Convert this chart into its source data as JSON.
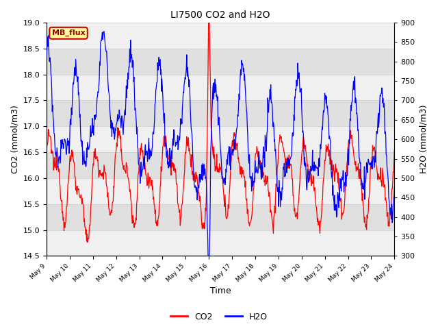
{
  "title": "LI7500 CO2 and H2O",
  "xlabel": "Time",
  "ylabel_left": "CO2 (mmol/m3)",
  "ylabel_right": "H2O (mmol/m3)",
  "ylim_left": [
    14.5,
    19.0
  ],
  "ylim_right": [
    300,
    900
  ],
  "annotation_text": "MB_flux",
  "annotation_bg": "#FFFF99",
  "annotation_border": "#CC0000",
  "co2_color": "#FF0000",
  "h2o_color": "#0000FF",
  "grid_color": "#D0D0D0",
  "bg_stripe_light": "#F0F0F0",
  "bg_stripe_dark": "#E0E0E0",
  "x_tick_labels": [
    "May 9",
    "May 10",
    "May 11",
    "May 12",
    "May 13",
    "May 14",
    "May 15",
    "May 16",
    "May 17",
    "May 18",
    "May 19",
    "May 20",
    "May 21",
    "May 22",
    "May 23",
    "May 24"
  ],
  "n_points": 800
}
